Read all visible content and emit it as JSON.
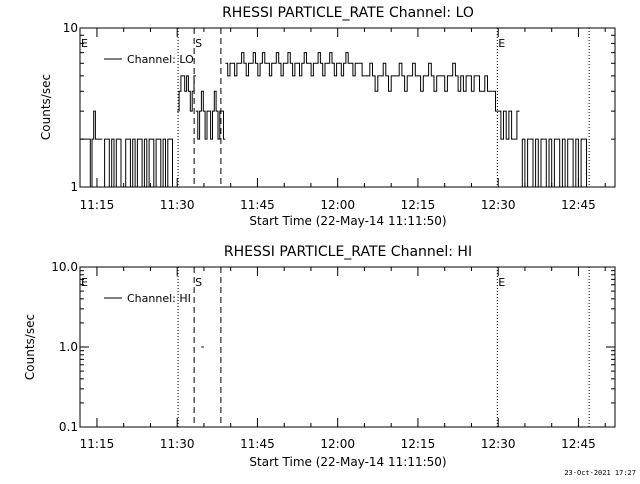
{
  "footer": {
    "timestamp": "23-Oct-2021 17:27"
  },
  "colors": {
    "background": "#ffffff",
    "foreground": "#000000"
  },
  "chart_data": [
    {
      "type": "line",
      "title": "RHESSI PARTICLE_RATE Channel: LO",
      "xlabel": "Start Time (22-May-14 11:11:50)",
      "ylabel": "Counts/sec",
      "yscale": "log",
      "ylim": [
        1,
        10
      ],
      "y_ticks": [
        1,
        10
      ],
      "y_tick_labels": [
        "1",
        "10"
      ],
      "xlim": [
        "11:11:50",
        "12:51:50"
      ],
      "x_ticks": [
        "11:15",
        "11:30",
        "11:45",
        "12:00",
        "12:15",
        "12:30",
        "12:45"
      ],
      "legend": {
        "label": "Channel: LO",
        "position": "top-left"
      },
      "markers": [
        {
          "label": "E",
          "time": "11:11:50",
          "style": "dotted"
        },
        {
          "label": "",
          "time": "11:30:10",
          "style": "dotted"
        },
        {
          "label": "S",
          "time": "11:33:10",
          "style": "dashed"
        },
        {
          "label": "",
          "time": "11:38:10",
          "style": "dashed"
        },
        {
          "label": "E",
          "time": "12:29:50",
          "style": "dotted"
        },
        {
          "label": "",
          "time": "12:47:00",
          "style": "dotted"
        }
      ],
      "series": [
        {
          "name": "Channel: LO",
          "segments": [
            {
              "t0": "11:11:50",
              "t1": "11:16:00",
              "values": [
                2,
                2,
                2,
                2,
                2,
                2,
                1,
                2,
                3,
                2,
                2,
                2,
                2
              ]
            },
            {
              "t0": "11:16:00",
              "t1": "11:30:00",
              "values": [
                1,
                2,
                2,
                1,
                2,
                1,
                2,
                2,
                1,
                1,
                2,
                2,
                1,
                2,
                1,
                2,
                2,
                1,
                2,
                1,
                2,
                2,
                1,
                2,
                2,
                1,
                2,
                1,
                2,
                2,
                1,
                1
              ]
            },
            {
              "t0": "11:30:00",
              "t1": "11:33:30",
              "values": [
                3,
                4,
                5,
                5,
                4,
                5,
                4,
                3,
                4,
                5
              ]
            },
            {
              "t0": "11:33:30",
              "t1": "11:39:00",
              "values": [
                3,
                2,
                3,
                4,
                3,
                2,
                3,
                3,
                2,
                3,
                4,
                3,
                2,
                3,
                3,
                2
              ]
            },
            {
              "t0": "11:39:00",
              "t1": "12:05:00",
              "values": [
                6,
                5,
                6,
                6,
                5,
                6,
                6,
                7,
                6,
                5,
                6,
                6,
                7,
                6,
                5,
                6,
                7,
                6,
                6,
                5,
                6,
                6,
                7,
                6,
                5,
                6,
                6,
                7,
                6,
                5,
                6,
                6,
                5,
                6,
                7,
                6,
                6,
                5,
                6,
                6,
                7,
                6,
                5,
                6,
                6,
                7,
                6,
                5,
                6,
                6,
                5,
                6,
                7,
                6,
                6,
                5,
                6,
                6,
                6,
                5
              ]
            },
            {
              "t0": "12:05:00",
              "t1": "12:29:00",
              "values": [
                5,
                5,
                6,
                5,
                4,
                5,
                5,
                6,
                5,
                4,
                5,
                5,
                5,
                6,
                5,
                4,
                5,
                5,
                6,
                5,
                5,
                4,
                5,
                5,
                6,
                5,
                4,
                5,
                5,
                5,
                4,
                5,
                5,
                6,
                5,
                4,
                5,
                4,
                5,
                5,
                4,
                5,
                5,
                4,
                4,
                5,
                4,
                4
              ]
            },
            {
              "t0": "12:29:00",
              "t1": "12:34:00",
              "values": [
                4,
                3,
                3,
                2,
                3,
                2,
                3,
                2,
                2,
                3
              ]
            },
            {
              "t0": "12:34:00",
              "t1": "12:47:00",
              "values": [
                1,
                2,
                1,
                2,
                2,
                1,
                2,
                1,
                2,
                2,
                1,
                2,
                1,
                2,
                2,
                1,
                2,
                1,
                2,
                2,
                1,
                2,
                1,
                2,
                2,
                1
              ]
            }
          ]
        }
      ]
    },
    {
      "type": "line",
      "title": "RHESSI PARTICLE_RATE Channel: HI",
      "xlabel": "Start Time (22-May-14 11:11:50)",
      "ylabel": "Counts/sec",
      "yscale": "log",
      "ylim": [
        0.1,
        10
      ],
      "y_ticks": [
        0.1,
        1.0,
        10.0
      ],
      "y_tick_labels": [
        "0.1",
        "1.0",
        "10.0"
      ],
      "xlim": [
        "11:11:50",
        "12:51:50"
      ],
      "x_ticks": [
        "11:15",
        "11:30",
        "11:45",
        "12:00",
        "12:15",
        "12:30",
        "12:45"
      ],
      "legend": {
        "label": "Channel: HI",
        "position": "top-left"
      },
      "markers": [
        {
          "label": "E",
          "time": "11:11:50",
          "style": "dotted"
        },
        {
          "label": "",
          "time": "11:30:10",
          "style": "dotted"
        },
        {
          "label": "S",
          "time": "11:33:10",
          "style": "dashed"
        },
        {
          "label": "",
          "time": "11:38:10",
          "style": "dashed"
        },
        {
          "label": "E",
          "time": "12:29:50",
          "style": "dotted"
        },
        {
          "label": "",
          "time": "12:47:00",
          "style": "dotted"
        }
      ],
      "series": [
        {
          "name": "Channel: HI",
          "segments": [
            {
              "t0": "11:34:30",
              "t1": "11:35:00",
              "values": [
                1.0,
                1.0
              ]
            }
          ]
        }
      ]
    }
  ]
}
